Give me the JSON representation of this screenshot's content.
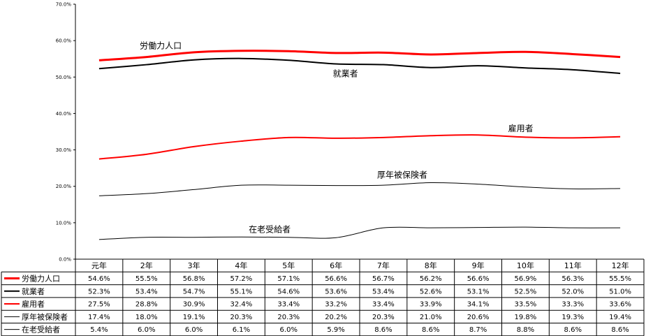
{
  "chart_data": {
    "type": "line",
    "categories": [
      "元年",
      "2年",
      "3年",
      "4年",
      "5年",
      "6年",
      "7年",
      "8年",
      "9年",
      "10年",
      "11年",
      "12年"
    ],
    "ylim": [
      0,
      70
    ],
    "yticks": [
      "0.0%",
      "10.0%",
      "20.0%",
      "30.0%",
      "40.0%",
      "50.0%",
      "60.0%",
      "70.0%"
    ],
    "grid": false,
    "legend": "data-table-left",
    "series": [
      {
        "name": "労働力人口",
        "color": "#ff0000",
        "width": 3,
        "values": [
          54.6,
          55.5,
          56.8,
          57.2,
          57.1,
          56.6,
          56.7,
          56.2,
          56.6,
          56.9,
          56.3,
          55.5
        ],
        "labels": [
          "54.6%",
          "55.5%",
          "56.8%",
          "57.2%",
          "57.1%",
          "56.6%",
          "56.7%",
          "56.2%",
          "56.6%",
          "56.9%",
          "56.3%",
          "55.5%"
        ]
      },
      {
        "name": "就業者",
        "color": "#000000",
        "width": 2,
        "values": [
          52.3,
          53.4,
          54.7,
          55.1,
          54.6,
          53.6,
          53.4,
          52.6,
          53.1,
          52.5,
          52.0,
          51.0
        ],
        "labels": [
          "52.3%",
          "53.4%",
          "54.7%",
          "55.1%",
          "54.6%",
          "53.6%",
          "53.4%",
          "52.6%",
          "53.1%",
          "52.5%",
          "52.0%",
          "51.0%"
        ]
      },
      {
        "name": "雇用者",
        "color": "#ff0000",
        "width": 2,
        "values": [
          27.5,
          28.8,
          30.9,
          32.4,
          33.4,
          33.2,
          33.4,
          33.9,
          34.1,
          33.5,
          33.3,
          33.6
        ],
        "labels": [
          "27.5%",
          "28.8%",
          "30.9%",
          "32.4%",
          "33.4%",
          "33.2%",
          "33.4%",
          "33.9%",
          "34.1%",
          "33.5%",
          "33.3%",
          "33.6%"
        ]
      },
      {
        "name": "厚年被保険者",
        "color": "#000000",
        "width": 1,
        "values": [
          17.4,
          18.0,
          19.1,
          20.3,
          20.3,
          20.2,
          20.3,
          21.0,
          20.6,
          19.8,
          19.3,
          19.4
        ],
        "labels": [
          "17.4%",
          "18.0%",
          "19.1%",
          "20.3%",
          "20.3%",
          "20.2%",
          "20.3%",
          "21.0%",
          "20.6%",
          "19.8%",
          "19.3%",
          "19.4%"
        ]
      },
      {
        "name": "在老受給者",
        "color": "#000000",
        "width": 1,
        "values": [
          5.4,
          6.0,
          6.0,
          6.1,
          6.0,
          5.9,
          8.6,
          8.6,
          8.7,
          8.8,
          8.6,
          8.6
        ],
        "labels": [
          "5.4%",
          "6.0%",
          "6.0%",
          "6.1%",
          "6.0%",
          "5.9%",
          "8.6%",
          "8.6%",
          "8.7%",
          "8.8%",
          "8.6%",
          "8.6%"
        ]
      }
    ],
    "annotations": [
      {
        "text": "労働力人口",
        "series": 0,
        "at": 1.3,
        "above": 14
      },
      {
        "text": "就業者",
        "series": 1,
        "at": 5.2,
        "above": -14
      },
      {
        "text": "雇用者",
        "series": 2,
        "at": 8.9,
        "above": 12
      },
      {
        "text": "厚年被保険者",
        "series": 3,
        "at": 6.4,
        "above": 13
      },
      {
        "text": "在老受給者",
        "series": 4,
        "at": 3.6,
        "above": 11
      }
    ]
  }
}
